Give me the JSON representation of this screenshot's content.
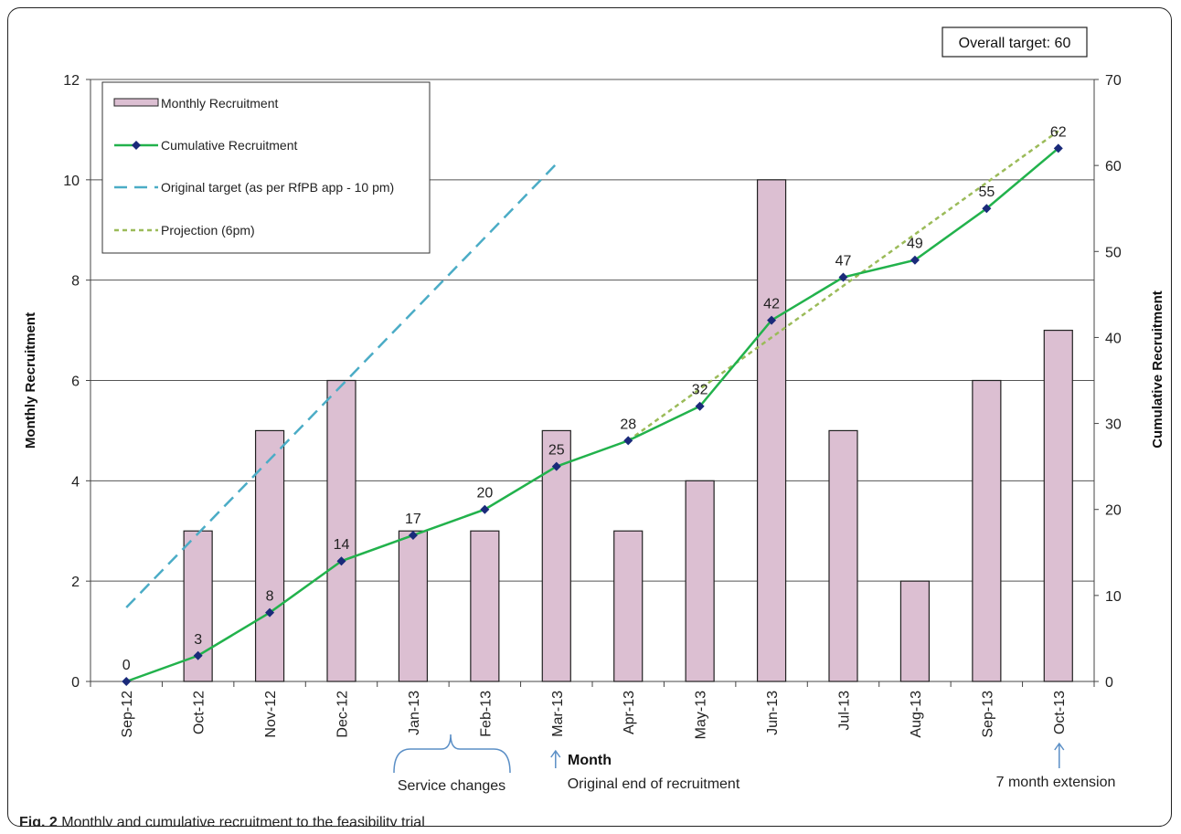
{
  "caption": {
    "label": "Fig. 2",
    "text": "Monthly and cumulative recruitment to the feasibility trial"
  },
  "chart_data": {
    "type": "bar",
    "categories": [
      "Sep-12",
      "Oct-12",
      "Nov-12",
      "Dec-12",
      "Jan-13",
      "Feb-13",
      "Mar-13",
      "Apr-13",
      "May-13",
      "Jun-13",
      "Jul-13",
      "Aug-13",
      "Sep-13",
      "Oct-13"
    ],
    "xlabel": "Month",
    "ylabel": "Monthly Recruitment",
    "y2label": "Cumulative Recruitment",
    "ylim": [
      0,
      12
    ],
    "y2lim": [
      0,
      70
    ],
    "yticks": [
      0,
      2,
      4,
      6,
      8,
      10,
      12
    ],
    "y2ticks": [
      0,
      10,
      20,
      30,
      40,
      50,
      60,
      70
    ],
    "grid": true,
    "legend_position": "top-left",
    "series": [
      {
        "name": "Monthly Recruitment",
        "kind": "bar",
        "axis": "left",
        "color": "#dcbfd2",
        "values": [
          0,
          3,
          5,
          6,
          3,
          3,
          5,
          3,
          4,
          10,
          5,
          2,
          6,
          7
        ]
      },
      {
        "name": "Cumulative Recruitment",
        "kind": "line",
        "axis": "right",
        "color": "#22b24c",
        "marker_color": "#1a2a7a",
        "values": [
          0,
          3,
          8,
          14,
          17,
          20,
          25,
          28,
          32,
          42,
          47,
          49,
          55,
          62
        ],
        "labels": [
          "0",
          "3",
          "8",
          "14",
          "17",
          "20",
          "25",
          "28",
          "32",
          "42",
          "47",
          "49",
          "55",
          "62"
        ]
      },
      {
        "name": "Original target (as per RfPB app - 10 pm)",
        "kind": "dashed-line",
        "axis": "right",
        "color": "#4bacc6",
        "points": [
          [
            0,
            8.6
          ],
          [
            6,
            60.2
          ]
        ]
      },
      {
        "name": "Projection (6pm)",
        "kind": "dotted-line",
        "axis": "right",
        "color": "#9bbb59",
        "points": [
          [
            7,
            28
          ],
          [
            13,
            64
          ]
        ]
      }
    ],
    "annotations": {
      "target_box": "Overall target: 60",
      "service_changes": "Service changes",
      "end_of_recruitment": "Original end of recruitment",
      "extension": "7 month extension"
    }
  }
}
